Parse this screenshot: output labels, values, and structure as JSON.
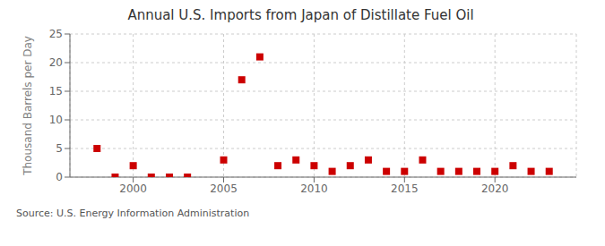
{
  "chart_data": {
    "type": "scatter",
    "title": "Annual U.S. Imports from Japan of Distillate Fuel Oil",
    "ylabel": "Thousand Barrels per Day",
    "annotation": "Source: U.S. Energy Information Administration",
    "x": [
      1998,
      1999,
      2000,
      2001,
      2002,
      2003,
      2005,
      2006,
      2007,
      2008,
      2009,
      2010,
      2011,
      2012,
      2013,
      2014,
      2015,
      2016,
      2017,
      2018,
      2019,
      2020,
      2021,
      2022,
      2023
    ],
    "values": [
      5,
      0,
      2,
      0,
      0,
      0,
      3,
      17,
      21,
      2,
      3,
      2,
      1,
      2,
      3,
      1,
      1,
      3,
      1,
      1,
      1,
      1,
      2,
      1,
      1
    ],
    "color": "#cc0000",
    "marker": "square",
    "xlim": [
      1996.5,
      2024.5
    ],
    "xticks": [
      2000,
      2005,
      2010,
      2015,
      2020
    ],
    "ylim": [
      0,
      25
    ],
    "yticks": [
      0,
      5,
      10,
      15,
      20,
      25
    ],
    "grid": true
  }
}
